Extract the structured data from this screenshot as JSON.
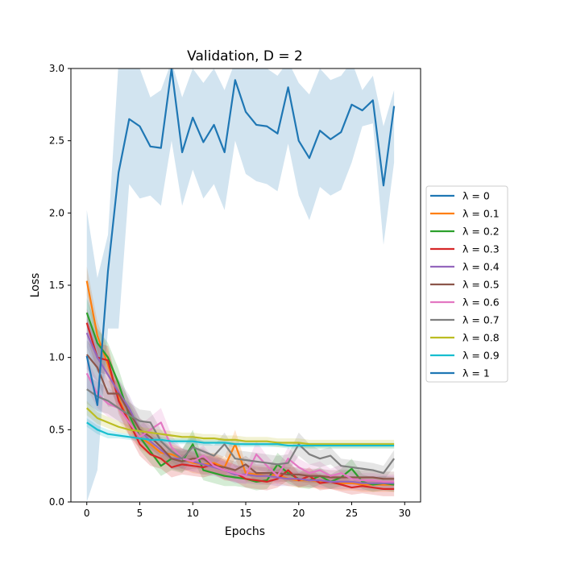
{
  "chart_data": {
    "type": "line",
    "title": "Validation, D = 2",
    "xlabel": "Epochs",
    "ylabel": "Loss",
    "xlim": [
      -1.5,
      31.5
    ],
    "ylim": [
      0,
      3.0
    ],
    "x_ticks": [
      "0",
      "5",
      "10",
      "15",
      "20",
      "25",
      "30"
    ],
    "y_ticks": [
      "0.0",
      "0.5",
      "1.0",
      "1.5",
      "2.0",
      "2.5",
      "3.0"
    ],
    "legend_position": "center-right-outside",
    "series": [
      {
        "name": "λ = 0",
        "color": "#1f77b4",
        "values": [
          0.02,
          0.0,
          0.0,
          0.0,
          0.0,
          0.0,
          0.0,
          0.0,
          0.0,
          0.0,
          0.0,
          0.0,
          0.0,
          0.0,
          0.0,
          0.0,
          0.0,
          0.0,
          0.0,
          0.0,
          0.0,
          0.0,
          0.0,
          0.0,
          0.0,
          0.0,
          0.0,
          0.0,
          0.0,
          0.0
        ],
        "hidden_values": true
      },
      {
        "name": "λ = 0.1",
        "color": "#ff7f0e",
        "values": [
          1.53,
          1.15,
          0.95,
          0.72,
          0.55,
          0.45,
          0.4,
          0.34,
          0.33,
          0.3,
          0.27,
          0.26,
          0.27,
          0.24,
          0.4,
          0.2,
          0.19,
          0.18,
          0.19,
          0.16,
          0.15,
          0.15,
          0.14,
          0.14,
          0.13,
          0.13,
          0.12,
          0.12,
          0.12,
          0.12
        ],
        "band": [
          0.1,
          0.1,
          0.1,
          0.09,
          0.09,
          0.08,
          0.08,
          0.07,
          0.07,
          0.07,
          0.07,
          0.07,
          0.07,
          0.07,
          0.1,
          0.06,
          0.06,
          0.06,
          0.06,
          0.05,
          0.05,
          0.05,
          0.05,
          0.05,
          0.05,
          0.05,
          0.05,
          0.05,
          0.05,
          0.05
        ]
      },
      {
        "name": "λ = 0.2",
        "color": "#2ca02c",
        "values": [
          1.31,
          1.1,
          1.0,
          0.82,
          0.6,
          0.45,
          0.35,
          0.25,
          0.3,
          0.28,
          0.4,
          0.22,
          0.2,
          0.18,
          0.17,
          0.16,
          0.14,
          0.15,
          0.26,
          0.2,
          0.16,
          0.15,
          0.18,
          0.14,
          0.17,
          0.23,
          0.14,
          0.12,
          0.13,
          0.12
        ],
        "band": [
          0.1,
          0.1,
          0.1,
          0.1,
          0.09,
          0.09,
          0.08,
          0.07,
          0.08,
          0.08,
          0.1,
          0.07,
          0.07,
          0.07,
          0.06,
          0.06,
          0.06,
          0.06,
          0.08,
          0.07,
          0.06,
          0.06,
          0.06,
          0.05,
          0.06,
          0.07,
          0.05,
          0.05,
          0.05,
          0.05
        ]
      },
      {
        "name": "λ = 0.3",
        "color": "#d62728",
        "values": [
          1.24,
          1.0,
          0.98,
          0.7,
          0.55,
          0.4,
          0.33,
          0.3,
          0.24,
          0.26,
          0.25,
          0.24,
          0.26,
          0.22,
          0.2,
          0.16,
          0.15,
          0.14,
          0.16,
          0.22,
          0.15,
          0.18,
          0.13,
          0.14,
          0.12,
          0.1,
          0.11,
          0.1,
          0.09,
          0.09
        ],
        "band": [
          0.1,
          0.1,
          0.1,
          0.09,
          0.09,
          0.08,
          0.08,
          0.07,
          0.07,
          0.07,
          0.07,
          0.07,
          0.07,
          0.07,
          0.06,
          0.06,
          0.06,
          0.06,
          0.06,
          0.07,
          0.05,
          0.06,
          0.05,
          0.05,
          0.05,
          0.05,
          0.05,
          0.05,
          0.05,
          0.05
        ]
      },
      {
        "name": "λ = 0.4",
        "color": "#9467bd",
        "values": [
          1.17,
          1.0,
          0.88,
          0.76,
          0.65,
          0.5,
          0.42,
          0.36,
          0.3,
          0.3,
          0.28,
          0.26,
          0.24,
          0.22,
          0.19,
          0.19,
          0.18,
          0.18,
          0.17,
          0.16,
          0.16,
          0.15,
          0.15,
          0.14,
          0.14,
          0.14,
          0.13,
          0.13,
          0.13,
          0.13
        ],
        "band": [
          0.1,
          0.1,
          0.09,
          0.09,
          0.09,
          0.08,
          0.08,
          0.07,
          0.07,
          0.07,
          0.07,
          0.07,
          0.06,
          0.06,
          0.06,
          0.06,
          0.06,
          0.06,
          0.06,
          0.05,
          0.05,
          0.05,
          0.05,
          0.05,
          0.05,
          0.05,
          0.05,
          0.05,
          0.05,
          0.05
        ]
      },
      {
        "name": "λ = 0.5",
        "color": "#8c564b",
        "values": [
          1.02,
          0.93,
          0.75,
          0.75,
          0.62,
          0.5,
          0.45,
          0.38,
          0.3,
          0.28,
          0.3,
          0.3,
          0.25,
          0.24,
          0.22,
          0.26,
          0.2,
          0.2,
          0.2,
          0.19,
          0.19,
          0.18,
          0.18,
          0.17,
          0.17,
          0.17,
          0.17,
          0.17,
          0.16,
          0.16
        ],
        "band": [
          0.1,
          0.1,
          0.09,
          0.09,
          0.09,
          0.08,
          0.08,
          0.07,
          0.07,
          0.07,
          0.07,
          0.07,
          0.06,
          0.06,
          0.06,
          0.06,
          0.06,
          0.06,
          0.06,
          0.05,
          0.05,
          0.05,
          0.05,
          0.05,
          0.05,
          0.05,
          0.05,
          0.05,
          0.05,
          0.05
        ]
      },
      {
        "name": "λ = 0.6",
        "color": "#e377c2",
        "values": [
          0.89,
          0.75,
          0.68,
          0.65,
          0.55,
          0.45,
          0.5,
          0.55,
          0.38,
          0.3,
          0.28,
          0.32,
          0.25,
          0.22,
          0.2,
          0.18,
          0.33,
          0.25,
          0.18,
          0.3,
          0.24,
          0.2,
          0.22,
          0.18,
          0.2,
          0.16,
          0.15,
          0.15,
          0.14,
          0.14
        ],
        "band": [
          0.1,
          0.1,
          0.09,
          0.09,
          0.09,
          0.08,
          0.09,
          0.1,
          0.08,
          0.07,
          0.07,
          0.07,
          0.06,
          0.06,
          0.06,
          0.06,
          0.09,
          0.07,
          0.06,
          0.08,
          0.06,
          0.06,
          0.06,
          0.05,
          0.06,
          0.05,
          0.05,
          0.05,
          0.05,
          0.05
        ]
      },
      {
        "name": "λ = 0.7",
        "color": "#7f7f7f",
        "values": [
          0.78,
          0.73,
          0.7,
          0.65,
          0.6,
          0.56,
          0.55,
          0.42,
          0.35,
          0.3,
          0.38,
          0.35,
          0.32,
          0.4,
          0.3,
          0.29,
          0.28,
          0.27,
          0.26,
          0.27,
          0.4,
          0.33,
          0.3,
          0.32,
          0.25,
          0.24,
          0.23,
          0.22,
          0.2,
          0.3
        ],
        "band": [
          0.1,
          0.1,
          0.09,
          0.09,
          0.09,
          0.08,
          0.08,
          0.08,
          0.07,
          0.07,
          0.08,
          0.07,
          0.07,
          0.08,
          0.06,
          0.06,
          0.06,
          0.06,
          0.06,
          0.06,
          0.08,
          0.07,
          0.06,
          0.06,
          0.05,
          0.05,
          0.05,
          0.05,
          0.05,
          0.06
        ]
      },
      {
        "name": "λ = 0.8",
        "color": "#bcbd22",
        "values": [
          0.65,
          0.58,
          0.55,
          0.52,
          0.5,
          0.49,
          0.48,
          0.47,
          0.46,
          0.45,
          0.45,
          0.44,
          0.44,
          0.43,
          0.43,
          0.42,
          0.42,
          0.42,
          0.41,
          0.41,
          0.41,
          0.4,
          0.4,
          0.4,
          0.4,
          0.4,
          0.4,
          0.4,
          0.4,
          0.4
        ],
        "band": [
          0.05,
          0.04,
          0.04,
          0.04,
          0.03,
          0.03,
          0.03,
          0.03,
          0.03,
          0.03,
          0.03,
          0.03,
          0.03,
          0.03,
          0.03,
          0.03,
          0.03,
          0.03,
          0.03,
          0.03,
          0.03,
          0.03,
          0.03,
          0.03,
          0.03,
          0.03,
          0.03,
          0.03,
          0.03,
          0.03
        ]
      },
      {
        "name": "λ = 0.9",
        "color": "#17becf",
        "values": [
          0.55,
          0.5,
          0.47,
          0.46,
          0.45,
          0.44,
          0.43,
          0.43,
          0.42,
          0.42,
          0.42,
          0.41,
          0.41,
          0.41,
          0.4,
          0.4,
          0.4,
          0.4,
          0.4,
          0.39,
          0.39,
          0.39,
          0.39,
          0.39,
          0.39,
          0.39,
          0.39,
          0.39,
          0.39,
          0.39
        ],
        "band": [
          0.03,
          0.03,
          0.03,
          0.02,
          0.02,
          0.02,
          0.02,
          0.02,
          0.02,
          0.02,
          0.02,
          0.02,
          0.02,
          0.02,
          0.02,
          0.02,
          0.02,
          0.02,
          0.02,
          0.02,
          0.02,
          0.02,
          0.02,
          0.02,
          0.02,
          0.02,
          0.02,
          0.02,
          0.02,
          0.02
        ]
      },
      {
        "name": "λ = 1",
        "color": "#1f77b4",
        "values": [
          1.01,
          0.67,
          1.6,
          2.28,
          2.65,
          2.6,
          2.46,
          2.45,
          3.0,
          2.42,
          2.66,
          2.49,
          2.61,
          2.42,
          2.92,
          2.7,
          2.61,
          2.6,
          2.55,
          2.87,
          2.5,
          2.38,
          2.57,
          2.51,
          2.56,
          2.75,
          2.71,
          2.78,
          2.19,
          2.74
        ],
        "band_low": [
          0.0,
          0.22,
          1.2,
          1.2,
          2.2,
          2.1,
          2.12,
          2.05,
          2.5,
          2.05,
          2.3,
          2.1,
          2.2,
          2.02,
          2.5,
          2.27,
          2.22,
          2.2,
          2.15,
          2.48,
          2.12,
          1.95,
          2.18,
          2.12,
          2.16,
          2.35,
          2.6,
          2.62,
          1.78,
          2.35
        ],
        "band_high": [
          2.02,
          1.55,
          1.85,
          3.05,
          3.1,
          3.0,
          2.8,
          2.85,
          3.05,
          2.8,
          3.0,
          2.9,
          3.0,
          2.85,
          3.05,
          3.0,
          3.0,
          3.0,
          2.95,
          3.05,
          2.9,
          2.82,
          3.0,
          2.92,
          2.95,
          3.05,
          2.85,
          2.95,
          2.6,
          2.85
        ]
      }
    ]
  }
}
